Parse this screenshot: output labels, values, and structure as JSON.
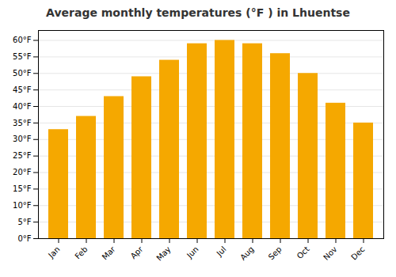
{
  "chart_data": {
    "type": "bar",
    "title": "Average monthly temperatures (°F ) in Lhuentse",
    "categories": [
      "Jan",
      "Feb",
      "Mar",
      "Apr",
      "May",
      "Jun",
      "Jul",
      "Aug",
      "Sep",
      "Oct",
      "Nov",
      "Dec"
    ],
    "values": [
      33,
      37,
      43,
      49,
      54,
      59,
      60,
      59,
      56,
      50,
      41,
      35
    ],
    "color": "#F5A800",
    "ylim": [
      0,
      63
    ],
    "yticks": [
      {
        "value": 0,
        "label": "0°F"
      },
      {
        "value": 5,
        "label": "5°F"
      },
      {
        "value": 10,
        "label": "10°F"
      },
      {
        "value": 15,
        "label": "15°F"
      },
      {
        "value": 20,
        "label": "20°F"
      },
      {
        "value": 25,
        "label": "25°F"
      },
      {
        "value": 30,
        "label": "30°F"
      },
      {
        "value": 35,
        "label": "35°F"
      },
      {
        "value": 40,
        "label": "40°F"
      },
      {
        "value": 45,
        "label": "45°F"
      },
      {
        "value": 50,
        "label": "50°F"
      },
      {
        "value": 55,
        "label": "55°F"
      },
      {
        "value": 60,
        "label": "60°F"
      }
    ],
    "grid": true
  }
}
